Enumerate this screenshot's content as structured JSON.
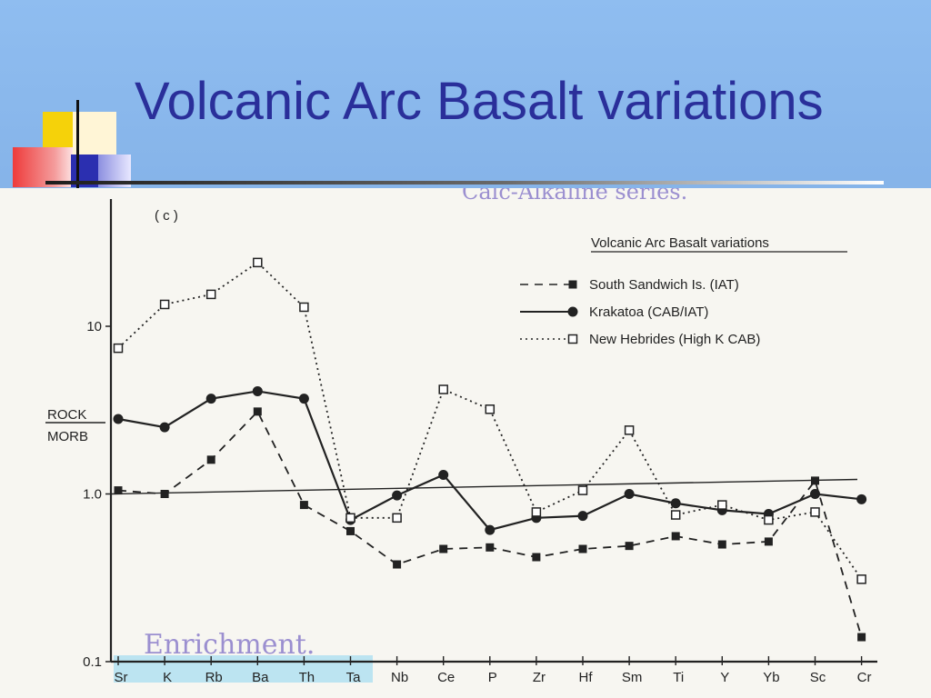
{
  "slide": {
    "title": "Volcanic Arc Basalt variations"
  },
  "chart_data": {
    "type": "line",
    "panel_label": "( c )",
    "title": "Volcanic Arc Basalt variations",
    "ylabel_top": "ROCK",
    "ylabel_bottom": "MORB",
    "y_scale": "log",
    "ylim": [
      0.1,
      30
    ],
    "y_ticks": [
      {
        "value": 0.1,
        "label": "0.1"
      },
      {
        "value": 1.0,
        "label": "1.0"
      },
      {
        "value": 10,
        "label": "10"
      }
    ],
    "categories": [
      "Sr",
      "K",
      "Rb",
      "Ba",
      "Th",
      "Ta",
      "Nb",
      "Ce",
      "P",
      "Zr",
      "Hf",
      "Sm",
      "Ti",
      "Y",
      "Yb",
      "Sc",
      "Cr"
    ],
    "reference_value": 1.0,
    "legend_position": "top-right",
    "series": [
      {
        "name": "South Sandwich Is. (IAT)",
        "style": "dashed",
        "marker": "filled-square",
        "color": "#222222",
        "values": [
          1.05,
          1.0,
          1.6,
          3.1,
          0.86,
          0.6,
          0.38,
          0.47,
          0.48,
          0.42,
          0.47,
          0.49,
          0.56,
          0.5,
          0.52,
          1.2,
          0.14
        ]
      },
      {
        "name": "Krakatoa (CAB/IAT)",
        "style": "solid",
        "marker": "filled-circle",
        "color": "#222222",
        "values": [
          2.8,
          2.5,
          3.7,
          4.1,
          3.7,
          0.7,
          0.98,
          1.3,
          0.61,
          0.72,
          0.74,
          1.0,
          0.88,
          0.8,
          0.76,
          1.0,
          0.93
        ]
      },
      {
        "name": "New Hebrides (High K CAB)",
        "style": "dotted",
        "marker": "open-square",
        "color": "#222222",
        "values": [
          7.4,
          13.5,
          15.5,
          24.0,
          13.0,
          0.72,
          0.72,
          4.2,
          3.2,
          0.78,
          1.05,
          2.4,
          0.75,
          0.86,
          0.7,
          0.78,
          0.31
        ]
      }
    ]
  },
  "annotations": {
    "handwritten_top": "Calc-Alkaline series.",
    "handwritten_bottom": "Enrichment."
  }
}
